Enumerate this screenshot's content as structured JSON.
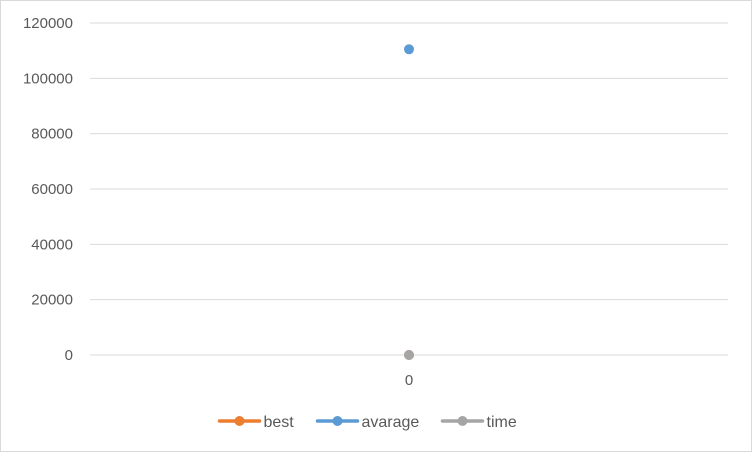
{
  "chart_data": {
    "type": "line",
    "categories": [
      "0"
    ],
    "x_tick_labels": [
      "0"
    ],
    "y_tick_labels": [
      "0",
      "20000",
      "40000",
      "60000",
      "80000",
      "100000",
      "120000"
    ],
    "ylim": [
      0,
      120000
    ],
    "grid": true,
    "legend_position": "bottom",
    "series": [
      {
        "name": "best",
        "values": [
          0
        ],
        "color": "#ED7D31"
      },
      {
        "name": "avarage",
        "values": [
          110500
        ],
        "color": "#5B9BD5"
      },
      {
        "name": "time",
        "values": [
          0
        ],
        "color": "#A5A5A5"
      }
    ]
  }
}
